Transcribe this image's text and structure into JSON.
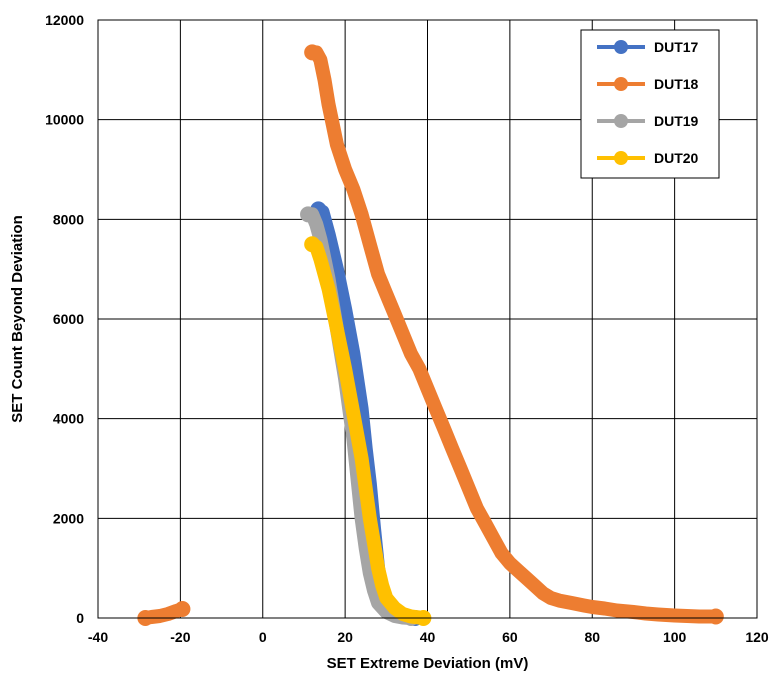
{
  "chart_data": {
    "type": "scatter",
    "title": "",
    "xlabel": "SET Extreme Deviation (mV)",
    "ylabel": "SET Count Beyond Deviation",
    "xlim": [
      -40,
      120
    ],
    "ylim": [
      0,
      12000
    ],
    "xticks": [
      -40,
      -20,
      0,
      20,
      40,
      60,
      80,
      100,
      120
    ],
    "yticks": [
      0,
      2000,
      4000,
      6000,
      8000,
      10000,
      12000
    ],
    "grid": true,
    "legend_position": "top-right",
    "series": [
      {
        "name": "DUT17",
        "color": "#4472C4",
        "points": [
          [
            13.5,
            8200
          ],
          [
            14.5,
            8150
          ],
          [
            16,
            7700
          ],
          [
            18,
            7000
          ],
          [
            20,
            6200
          ],
          [
            22,
            5300
          ],
          [
            24,
            4200
          ],
          [
            25,
            3400
          ],
          [
            26,
            2700
          ],
          [
            27,
            1800
          ],
          [
            28,
            1000
          ],
          [
            29,
            500
          ],
          [
            30,
            250
          ],
          [
            32,
            100
          ],
          [
            34,
            40
          ],
          [
            36,
            10
          ],
          [
            37,
            0
          ]
        ]
      },
      {
        "name": "DUT18",
        "color": "#ED7D31",
        "points": [
          [
            -28.5,
            0
          ],
          [
            -27,
            20
          ],
          [
            -25,
            40
          ],
          [
            -23,
            80
          ],
          [
            -21,
            140
          ],
          [
            -19.5,
            180
          ],
          [
            12,
            11350
          ],
          [
            13,
            11350
          ],
          [
            14,
            11200
          ],
          [
            15,
            10800
          ],
          [
            16,
            10300
          ],
          [
            17,
            9900
          ],
          [
            18,
            9500
          ],
          [
            20,
            9000
          ],
          [
            22,
            8600
          ],
          [
            24,
            8100
          ],
          [
            26,
            7500
          ],
          [
            28,
            6900
          ],
          [
            30,
            6500
          ],
          [
            32,
            6100
          ],
          [
            34,
            5700
          ],
          [
            36,
            5300
          ],
          [
            38,
            5000
          ],
          [
            40,
            4600
          ],
          [
            42,
            4200
          ],
          [
            44,
            3800
          ],
          [
            46,
            3400
          ],
          [
            48,
            3000
          ],
          [
            50,
            2600
          ],
          [
            52,
            2200
          ],
          [
            54,
            1900
          ],
          [
            56,
            1600
          ],
          [
            58,
            1300
          ],
          [
            60,
            1100
          ],
          [
            62,
            950
          ],
          [
            64,
            800
          ],
          [
            66,
            650
          ],
          [
            68,
            500
          ],
          [
            70,
            400
          ],
          [
            72,
            350
          ],
          [
            75,
            300
          ],
          [
            78,
            250
          ],
          [
            80,
            220
          ],
          [
            83,
            190
          ],
          [
            86,
            150
          ],
          [
            90,
            120
          ],
          [
            93,
            90
          ],
          [
            96,
            70
          ],
          [
            100,
            50
          ],
          [
            103,
            40
          ],
          [
            106,
            30
          ],
          [
            110,
            30
          ]
        ]
      },
      {
        "name": "DUT19",
        "color": "#A5A5A5",
        "points": [
          [
            11,
            8100
          ],
          [
            12,
            8100
          ],
          [
            13,
            7900
          ],
          [
            14,
            7600
          ],
          [
            16,
            6800
          ],
          [
            18,
            5800
          ],
          [
            20,
            4800
          ],
          [
            21,
            4200
          ],
          [
            22,
            3600
          ],
          [
            23,
            2800
          ],
          [
            24,
            2000
          ],
          [
            25,
            1400
          ],
          [
            26,
            900
          ],
          [
            27,
            550
          ],
          [
            28,
            300
          ],
          [
            30,
            120
          ],
          [
            32,
            40
          ],
          [
            34,
            10
          ],
          [
            36,
            0
          ]
        ]
      },
      {
        "name": "DUT20",
        "color": "#FFC000",
        "points": [
          [
            12,
            7500
          ],
          [
            13,
            7450
          ],
          [
            14,
            7200
          ],
          [
            16,
            6600
          ],
          [
            18,
            5800
          ],
          [
            20,
            5000
          ],
          [
            22,
            4100
          ],
          [
            24,
            3200
          ],
          [
            25,
            2600
          ],
          [
            26,
            2000
          ],
          [
            27,
            1500
          ],
          [
            28,
            1000
          ],
          [
            29,
            650
          ],
          [
            30,
            400
          ],
          [
            32,
            200
          ],
          [
            34,
            80
          ],
          [
            36,
            30
          ],
          [
            38,
            10
          ],
          [
            39,
            0
          ]
        ]
      }
    ]
  }
}
